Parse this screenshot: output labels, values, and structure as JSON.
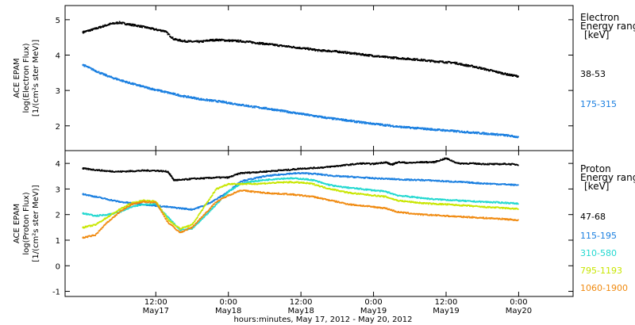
{
  "chart_data": [
    {
      "type": "line",
      "panel": "top",
      "ylabel": [
        "ACE EPAM",
        "log(Electron Flux)",
        "[1/(cm²s ster MeV)]"
      ],
      "ylim": [
        1.3,
        5.4
      ],
      "yticks": [
        2,
        3,
        4,
        5
      ],
      "legend_title": [
        "Electron",
        "Energy ranges",
        "[keV]"
      ],
      "series": [
        {
          "name": "38-53",
          "color": "#000000",
          "x": [
            0,
            1.5,
            3,
            4.5,
            6,
            7.5,
            9,
            10.5,
            12,
            13.5,
            15,
            16.5,
            18,
            19.5,
            21,
            22.5,
            24,
            25.5,
            27,
            28.5,
            30,
            31.5,
            33,
            34.5,
            36,
            37.5,
            39,
            40.5,
            42,
            43.5,
            45,
            46.5,
            48,
            49.5,
            51,
            52.5,
            54,
            55.5,
            57,
            58.5,
            60,
            61.5,
            63,
            64.5,
            66,
            67.5,
            69,
            70.5,
            72
          ],
          "y": [
            4.65,
            4.72,
            4.8,
            4.88,
            4.92,
            4.87,
            4.83,
            4.78,
            4.72,
            4.68,
            4.45,
            4.4,
            4.38,
            4.38,
            4.42,
            4.43,
            4.41,
            4.4,
            4.38,
            4.35,
            4.32,
            4.29,
            4.26,
            4.23,
            4.2,
            4.17,
            4.13,
            4.12,
            4.1,
            4.07,
            4.04,
            4.01,
            3.98,
            3.95,
            3.93,
            3.91,
            3.89,
            3.87,
            3.84,
            3.82,
            3.8,
            3.78,
            3.72,
            3.68,
            3.62,
            3.56,
            3.5,
            3.44,
            3.4
          ]
        },
        {
          "name": "175-315",
          "color": "#1a7fe0",
          "x": [
            0,
            1.5,
            3,
            4.5,
            6,
            7.5,
            9,
            10.5,
            12,
            13.5,
            15,
            16.5,
            18,
            19.5,
            21,
            22.5,
            24,
            25.5,
            27,
            28.5,
            30,
            31.5,
            33,
            34.5,
            36,
            37.5,
            39,
            40.5,
            42,
            43.5,
            45,
            46.5,
            48,
            49.5,
            51,
            52.5,
            54,
            55.5,
            57,
            58.5,
            60,
            61.5,
            63,
            64.5,
            66,
            67.5,
            69,
            70.5,
            72
          ],
          "y": [
            3.72,
            3.6,
            3.48,
            3.38,
            3.3,
            3.22,
            3.15,
            3.08,
            3.02,
            2.96,
            2.9,
            2.84,
            2.8,
            2.75,
            2.72,
            2.69,
            2.65,
            2.61,
            2.57,
            2.53,
            2.5,
            2.46,
            2.42,
            2.38,
            2.34,
            2.3,
            2.26,
            2.22,
            2.19,
            2.16,
            2.12,
            2.09,
            2.06,
            2.03,
            2.0,
            1.97,
            1.95,
            1.93,
            1.91,
            1.89,
            1.87,
            1.85,
            1.83,
            1.81,
            1.79,
            1.77,
            1.75,
            1.72,
            1.68
          ]
        }
      ]
    },
    {
      "type": "line",
      "panel": "bottom",
      "ylabel": [
        "ACE EPAM",
        "log(Proton Flux)",
        "[1/(cm²s ster MeV)]"
      ],
      "ylim": [
        -1.2,
        4.5
      ],
      "yticks": [
        -1,
        0,
        1,
        2,
        3,
        4
      ],
      "legend_title": [
        "Proton",
        "Energy ranges",
        "[keV]"
      ],
      "xlabel": "hours:minutes, May 17, 2012 - May 20, 2012",
      "xlim": [
        -3,
        81
      ],
      "xticks": [
        {
          "x": 12,
          "time": "12:00",
          "day": "May17"
        },
        {
          "x": 24,
          "time": "0:00",
          "day": "May18"
        },
        {
          "x": 36,
          "time": "12:00",
          "day": "May18"
        },
        {
          "x": 48,
          "time": "0:00",
          "day": "May19"
        },
        {
          "x": 60,
          "time": "12:00",
          "day": "May19"
        },
        {
          "x": 72,
          "time": "0:00",
          "day": "May20"
        }
      ],
      "series": [
        {
          "name": "47-68",
          "color": "#000000",
          "x": [
            0,
            2,
            4,
            6,
            8,
            10,
            12,
            14,
            15,
            16,
            18,
            20,
            22,
            24,
            26,
            28,
            30,
            32,
            34,
            36,
            38,
            40,
            42,
            44,
            46,
            48,
            50,
            51,
            52,
            54,
            56,
            58,
            60,
            62,
            64,
            66,
            68,
            70,
            72
          ],
          "y": [
            3.8,
            3.75,
            3.7,
            3.68,
            3.7,
            3.72,
            3.72,
            3.68,
            3.35,
            3.35,
            3.4,
            3.42,
            3.45,
            3.45,
            3.62,
            3.65,
            3.68,
            3.72,
            3.75,
            3.8,
            3.82,
            3.85,
            3.9,
            3.95,
            4.0,
            3.98,
            4.05,
            3.95,
            4.05,
            4.02,
            4.05,
            4.05,
            4.2,
            4.0,
            4.0,
            3.98,
            3.97,
            3.98,
            3.95
          ]
        },
        {
          "name": "115-195",
          "color": "#1a7fe0",
          "x": [
            0,
            2,
            4,
            6,
            8,
            10,
            12,
            14,
            16,
            18,
            20,
            22,
            24,
            26,
            28,
            30,
            32,
            34,
            36,
            38,
            40,
            42,
            44,
            46,
            48,
            50,
            52,
            54,
            56,
            58,
            60,
            62,
            64,
            66,
            68,
            70,
            72
          ],
          "y": [
            2.8,
            2.7,
            2.6,
            2.5,
            2.45,
            2.4,
            2.35,
            2.3,
            2.25,
            2.2,
            2.35,
            2.6,
            2.9,
            3.3,
            3.4,
            3.5,
            3.55,
            3.6,
            3.62,
            3.6,
            3.55,
            3.5,
            3.48,
            3.45,
            3.42,
            3.4,
            3.38,
            3.36,
            3.35,
            3.33,
            3.3,
            3.28,
            3.25,
            3.22,
            3.2,
            3.18,
            3.15
          ]
        },
        {
          "name": "310-580",
          "color": "#22d8d0",
          "x": [
            0,
            2,
            4,
            6,
            8,
            10,
            12,
            14,
            16,
            18,
            20,
            22,
            24,
            26,
            28,
            30,
            32,
            34,
            36,
            38,
            40,
            42,
            44,
            46,
            48,
            50,
            52,
            54,
            56,
            58,
            60,
            62,
            64,
            66,
            68,
            70,
            72
          ],
          "y": [
            2.05,
            1.95,
            2.0,
            2.1,
            2.3,
            2.4,
            2.42,
            1.9,
            1.4,
            1.45,
            1.9,
            2.4,
            2.9,
            3.2,
            3.3,
            3.35,
            3.4,
            3.42,
            3.4,
            3.35,
            3.2,
            3.1,
            3.05,
            3.0,
            2.95,
            2.9,
            2.75,
            2.7,
            2.65,
            2.6,
            2.58,
            2.55,
            2.52,
            2.5,
            2.48,
            2.46,
            2.43
          ]
        },
        {
          "name": "795-1193",
          "color": "#c8e600",
          "x": [
            0,
            2,
            4,
            6,
            8,
            10,
            12,
            14,
            16,
            18,
            20,
            22,
            24,
            26,
            28,
            30,
            32,
            34,
            36,
            38,
            40,
            42,
            44,
            46,
            48,
            50,
            52,
            54,
            56,
            58,
            60,
            62,
            64,
            66,
            68,
            70,
            72
          ],
          "y": [
            1.5,
            1.6,
            1.9,
            2.2,
            2.45,
            2.55,
            2.52,
            1.8,
            1.45,
            1.6,
            2.3,
            3.0,
            3.2,
            3.2,
            3.2,
            3.22,
            3.25,
            3.27,
            3.25,
            3.2,
            3.05,
            2.95,
            2.85,
            2.8,
            2.75,
            2.7,
            2.55,
            2.5,
            2.45,
            2.42,
            2.4,
            2.37,
            2.34,
            2.3,
            2.28,
            2.25,
            2.22
          ]
        },
        {
          "name": "1060-1900",
          "color": "#f08a10",
          "x": [
            0,
            2,
            4,
            6,
            8,
            10,
            12,
            14,
            16,
            18,
            20,
            22,
            24,
            26,
            28,
            30,
            32,
            34,
            36,
            38,
            40,
            42,
            44,
            46,
            48,
            50,
            52,
            54,
            56,
            58,
            60,
            62,
            64,
            66,
            68,
            70,
            72
          ],
          "y": [
            1.1,
            1.2,
            1.7,
            2.1,
            2.4,
            2.5,
            2.48,
            1.7,
            1.3,
            1.5,
            2.0,
            2.5,
            2.75,
            2.95,
            2.9,
            2.85,
            2.82,
            2.8,
            2.75,
            2.7,
            2.6,
            2.5,
            2.4,
            2.35,
            2.3,
            2.25,
            2.1,
            2.05,
            2.0,
            1.98,
            1.95,
            1.92,
            1.9,
            1.87,
            1.85,
            1.82,
            1.78
          ]
        }
      ]
    }
  ]
}
